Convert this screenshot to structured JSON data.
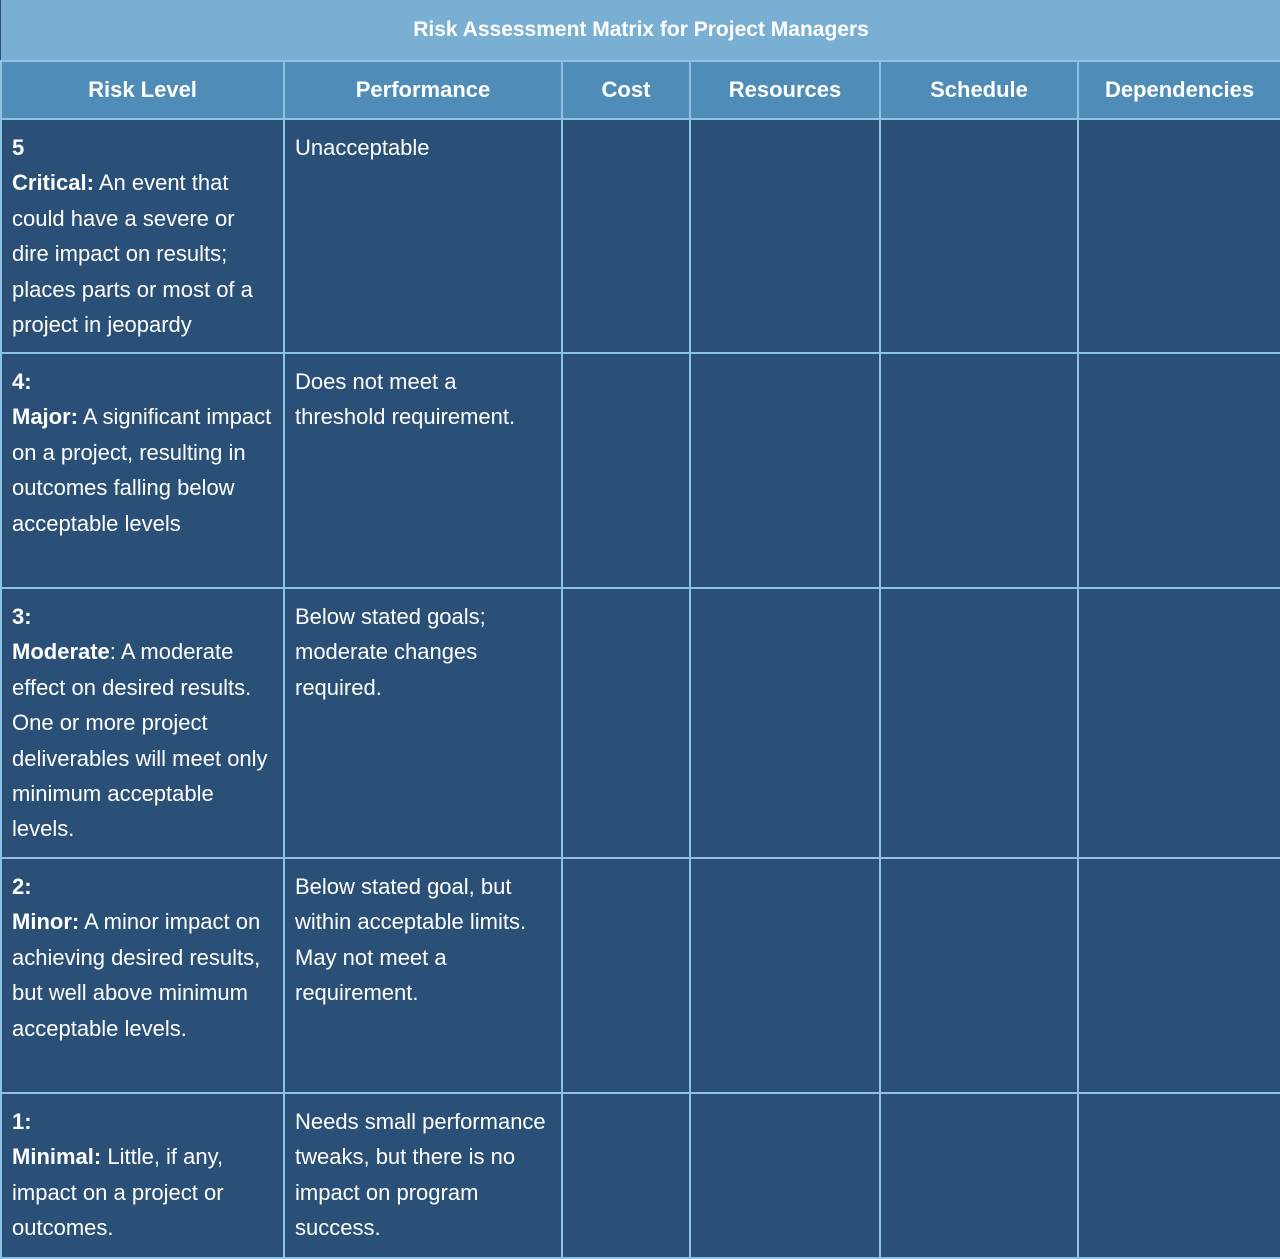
{
  "title": "Risk Assessment Matrix for Project Managers",
  "columns": [
    "Risk Level",
    "Performance",
    "Cost",
    "Resources",
    "Schedule",
    "Dependencies"
  ],
  "rows": [
    {
      "level": "5",
      "name": "Critical:",
      "name_suffix": "",
      "description": " An event that could have a severe or dire impact on results; places parts or most of a project in jeopardy",
      "performance": "Unacceptable",
      "cost": "",
      "resources": "",
      "schedule": "",
      "dependencies": ""
    },
    {
      "level": "4:",
      "name": "Major:",
      "name_suffix": "",
      "description": " A significant impact on a project, resulting in outcomes falling below acceptable levels",
      "performance": "Does not meet a threshold requirement.",
      "cost": "",
      "resources": "",
      "schedule": "",
      "dependencies": ""
    },
    {
      "level": "3:",
      "name": "Moderate",
      "name_suffix": ":",
      "description": " A moderate effect on desired results. One or more project deliverables will meet only minimum acceptable levels.",
      "performance": "Below stated goals; moderate changes required.",
      "cost": "",
      "resources": "",
      "schedule": "",
      "dependencies": ""
    },
    {
      "level": "2:",
      "name": "Minor:",
      "name_suffix": "",
      "description": " A minor impact on achieving desired results, but well above minimum acceptable levels.",
      "performance": "Below stated goal, but within acceptable limits. May not meet a requirement.",
      "cost": "",
      "resources": "",
      "schedule": "",
      "dependencies": ""
    },
    {
      "level": "1:",
      "name": "Minimal:",
      "name_suffix": "",
      "description": " Little, if any, impact on a project or outcomes.",
      "performance": "Needs small performance tweaks, but there is no impact on program success.",
      "cost": "",
      "resources": "",
      "schedule": "",
      "dependencies": ""
    }
  ],
  "colors": {
    "title_bg": "#7aafd4",
    "header_bg": "#4f8db8",
    "body_bg": "#2a5078",
    "border": "#8ec3e6"
  }
}
